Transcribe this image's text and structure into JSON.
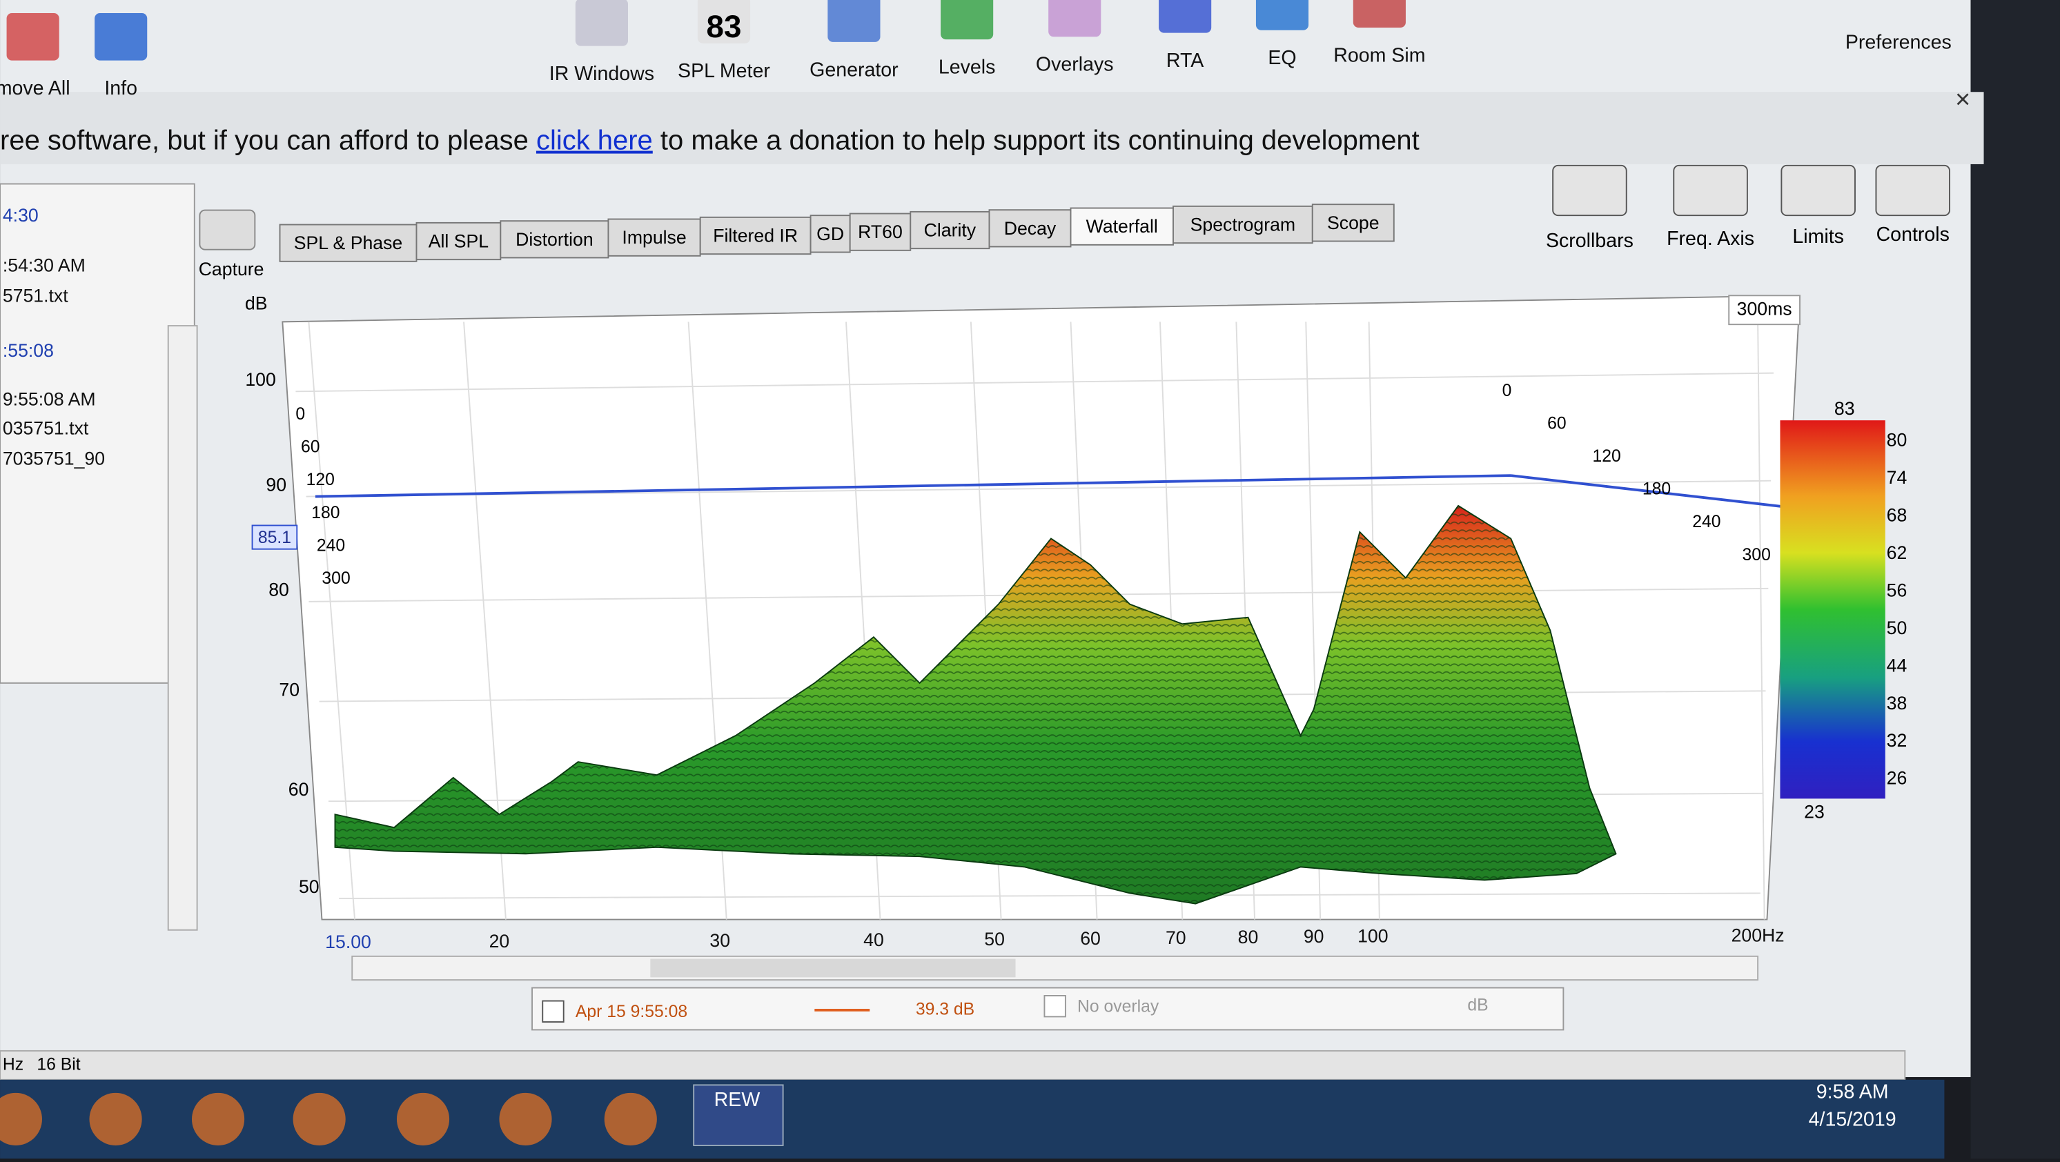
{
  "toolbar": {
    "items": [
      "move All",
      "Info",
      "IR Windows",
      "SPL Meter",
      "Generator",
      "Levels",
      "Overlays",
      "RTA",
      "EQ",
      "Room Sim",
      "Preferences"
    ],
    "spl_meter_value": "83"
  },
  "banner": {
    "text_before": "ree software, but if you can afford to please",
    "link": "click here",
    "text_after": "to make a donation to help support its continuing development",
    "close": "×"
  },
  "tabs": [
    "SPL & Phase",
    "All SPL",
    "Distortion",
    "Impulse",
    "Filtered IR",
    "GD",
    "RT60",
    "Clarity",
    "Decay",
    "Waterfall",
    "Spectrogram",
    "Scope"
  ],
  "capture": "Capture",
  "right_tools": [
    "Scrollbars",
    "Freq. Axis",
    "Limits",
    "Controls"
  ],
  "left_panel": {
    "entries": [
      "4:30",
      ":54:30 AM",
      "5751.txt",
      ":55:08",
      "9:55:08 AM",
      "035751.txt",
      "7035751_90"
    ]
  },
  "plot": {
    "y_label": "dB",
    "y_ticks": [
      "100",
      "90",
      "80",
      "70",
      "60",
      "50"
    ],
    "cursor": "85.1",
    "x_ticks": [
      "15.00",
      "20",
      "30",
      "40",
      "50",
      "60",
      "70",
      "80",
      "90",
      "100",
      "200Hz"
    ],
    "time_label": "300ms",
    "time_ticks": [
      "0",
      "60",
      "120",
      "180",
      "240",
      "300"
    ],
    "colorbar": [
      "83",
      "80",
      "74",
      "68",
      "62",
      "56",
      "50",
      "44",
      "38",
      "32",
      "26",
      "23"
    ]
  },
  "legend": {
    "measurement": "Apr 15 9:55:08",
    "level": "39.3 dB",
    "overlay": "No overlay",
    "unit": "dB"
  },
  "status": [
    "Hz",
    "16 Bit"
  ],
  "taskbar": {
    "app": "REW",
    "time": "9:58 AM",
    "date": "4/15/2019"
  }
}
